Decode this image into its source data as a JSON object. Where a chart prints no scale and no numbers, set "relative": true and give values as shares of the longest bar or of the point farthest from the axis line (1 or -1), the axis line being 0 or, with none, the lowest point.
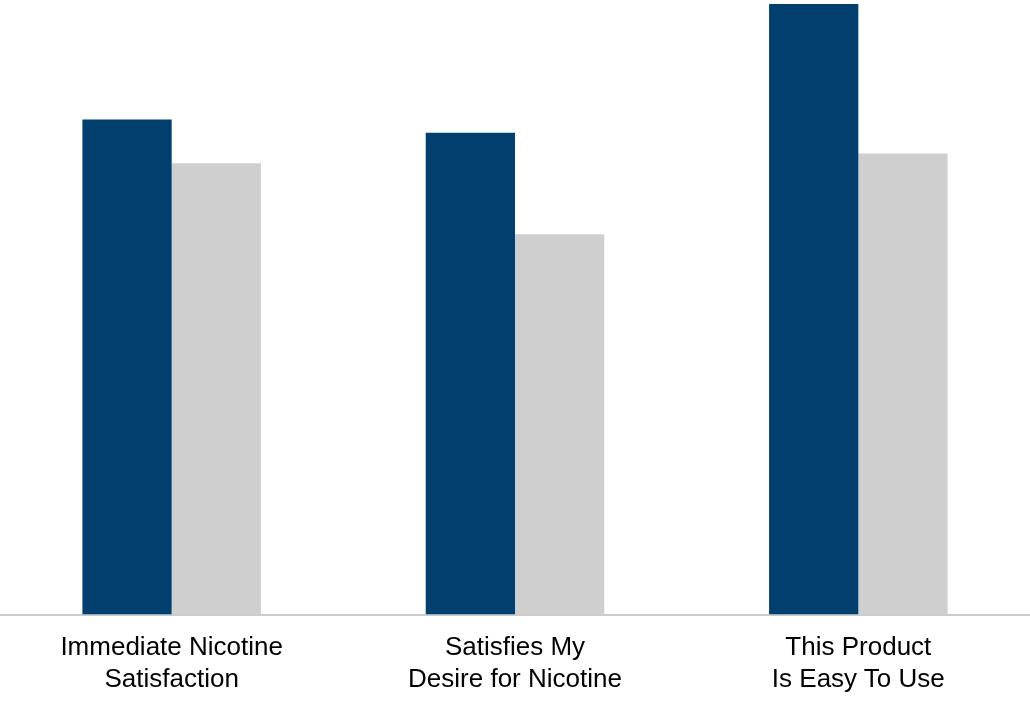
{
  "chart_data": {
    "type": "bar",
    "relative": true,
    "categories": [
      "Immediate Nicotine Satisfaction",
      "Satisfies My Desire for Nicotine",
      "This Product Is Easy To Use"
    ],
    "series": [
      {
        "color": "#003f6e",
        "values": [
          0.811,
          0.789,
          1
        ]
      },
      {
        "color": "#cfcfcf",
        "values": [
          0.739,
          0.623,
          0.755
        ]
      }
    ],
    "grid": false,
    "legend": false
  }
}
